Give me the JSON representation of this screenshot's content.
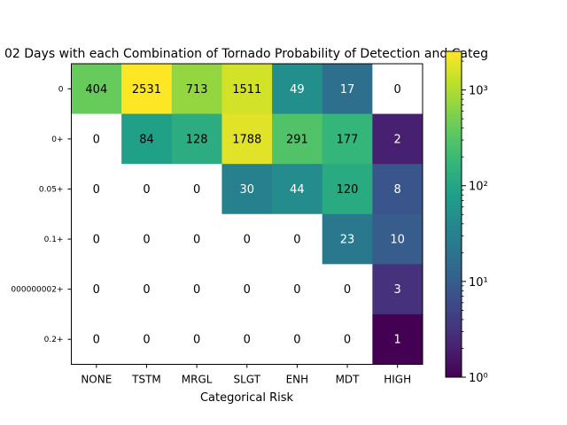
{
  "chart_data": {
    "type": "heatmap",
    "title": "02 Days with each Combination of Tornado Probability of Detection and Categ",
    "xlabel": "Categorical Risk",
    "ylabel": "",
    "x_categories": [
      "NONE",
      "TSTM",
      "MRGL",
      "SLGT",
      "ENH",
      "MDT",
      "HIGH"
    ],
    "y_categories": [
      "0",
      "0+",
      "0.05+",
      "0.1+",
      "000000002+",
      "0.2+"
    ],
    "values": [
      [
        404,
        2531,
        713,
        1511,
        49,
        17,
        0
      ],
      [
        0,
        84,
        128,
        1788,
        291,
        177,
        2
      ],
      [
        0,
        0,
        0,
        30,
        44,
        120,
        8
      ],
      [
        0,
        0,
        0,
        0,
        0,
        23,
        10
      ],
      [
        0,
        0,
        0,
        0,
        0,
        0,
        3
      ],
      [
        0,
        0,
        0,
        0,
        0,
        0,
        1
      ]
    ],
    "colorscale": "viridis",
    "color_scale_type": "log",
    "zero_cells": "white",
    "colorbar": {
      "range": [
        1,
        2531
      ],
      "ticks": [
        {
          "value": 1,
          "label": "10⁰"
        },
        {
          "value": 10,
          "label": "10¹"
        },
        {
          "value": 100,
          "label": "10²"
        },
        {
          "value": 1000,
          "label": "10³"
        }
      ]
    }
  }
}
